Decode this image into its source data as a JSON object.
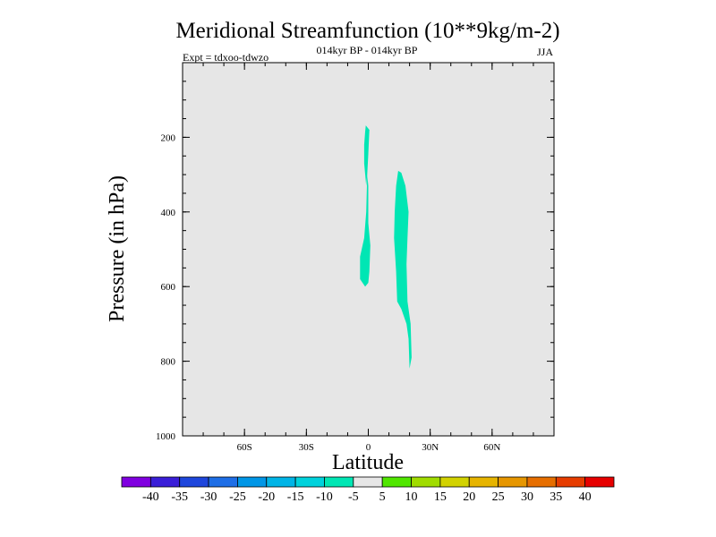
{
  "chart_data": {
    "type": "heatmap",
    "title": "Meridional Streamfunction (10**9kg/m-2)",
    "subtitle": "014kyr BP - 014kyr BP",
    "left_note": "Expt = tdxoo-tdwzo",
    "right_note": "JJA",
    "xlabel": "Latitude",
    "ylabel": "Pressure (in hPa)",
    "xlim": [
      -90,
      90
    ],
    "ylim": [
      1000,
      0
    ],
    "x_ticks": [
      {
        "value": -60,
        "label": "60S"
      },
      {
        "value": -30,
        "label": "30S"
      },
      {
        "value": 0,
        "label": "0"
      },
      {
        "value": 30,
        "label": "30N"
      },
      {
        "value": 60,
        "label": "60N"
      }
    ],
    "y_ticks": [
      {
        "value": 200,
        "label": "200"
      },
      {
        "value": 400,
        "label": "400"
      },
      {
        "value": 600,
        "label": "600"
      },
      {
        "value": 800,
        "label": "800"
      },
      {
        "value": 1000,
        "label": "1000"
      }
    ],
    "background_color": "#e6e6e6",
    "colorbar": {
      "labels": [
        "-40",
        "-35",
        "-30",
        "-25",
        "-20",
        "-15",
        "-10",
        "-5",
        "5",
        "10",
        "15",
        "20",
        "25",
        "30",
        "35",
        "40"
      ],
      "colors": [
        "#8000e0",
        "#3a1ed8",
        "#1e46dc",
        "#1e6ee6",
        "#0096e6",
        "#00b4e6",
        "#00d2dc",
        "#00e6b4",
        "#e6e6e6",
        "#50e600",
        "#a0dc00",
        "#d2d200",
        "#e6b400",
        "#e69600",
        "#e66e00",
        "#e63c00",
        "#e60000"
      ]
    },
    "regions": [
      {
        "name": "equatorial negative cell",
        "level": "-10 to -5",
        "color": "#00e6b4",
        "outline": [
          [
            -1.2,
            168
          ],
          [
            0.5,
            180
          ],
          [
            0,
            245
          ],
          [
            -0.5,
            300
          ],
          [
            -1,
            330
          ],
          [
            -2,
            270
          ],
          [
            -2,
            220
          ],
          [
            -1.5,
            185
          ]
        ]
      },
      {
        "name": "equatorial negative cell lower",
        "level": "-10 to -5",
        "color": "#00e6b4",
        "outline": [
          [
            -0.5,
            300
          ],
          [
            0,
            330
          ],
          [
            0,
            430
          ],
          [
            1,
            490
          ],
          [
            0.5,
            560
          ],
          [
            0,
            590
          ],
          [
            -1.5,
            600
          ],
          [
            -4,
            580
          ],
          [
            -4,
            520
          ],
          [
            -2,
            470
          ],
          [
            -1,
            400
          ]
        ]
      },
      {
        "name": "northern negative cell",
        "level": "-10 to -5",
        "color": "#00e6b4",
        "outline": [
          [
            14.5,
            290
          ],
          [
            16,
            295
          ],
          [
            18,
            330
          ],
          [
            19.5,
            400
          ],
          [
            19,
            470
          ],
          [
            18.5,
            540
          ],
          [
            19,
            640
          ],
          [
            20.5,
            700
          ],
          [
            21,
            790
          ],
          [
            20,
            820
          ],
          [
            19.5,
            740
          ],
          [
            18.5,
            700
          ],
          [
            16,
            660
          ],
          [
            14,
            640
          ],
          [
            13.5,
            560
          ],
          [
            12.5,
            470
          ],
          [
            12.8,
            400
          ],
          [
            13.5,
            330
          ]
        ]
      }
    ]
  }
}
